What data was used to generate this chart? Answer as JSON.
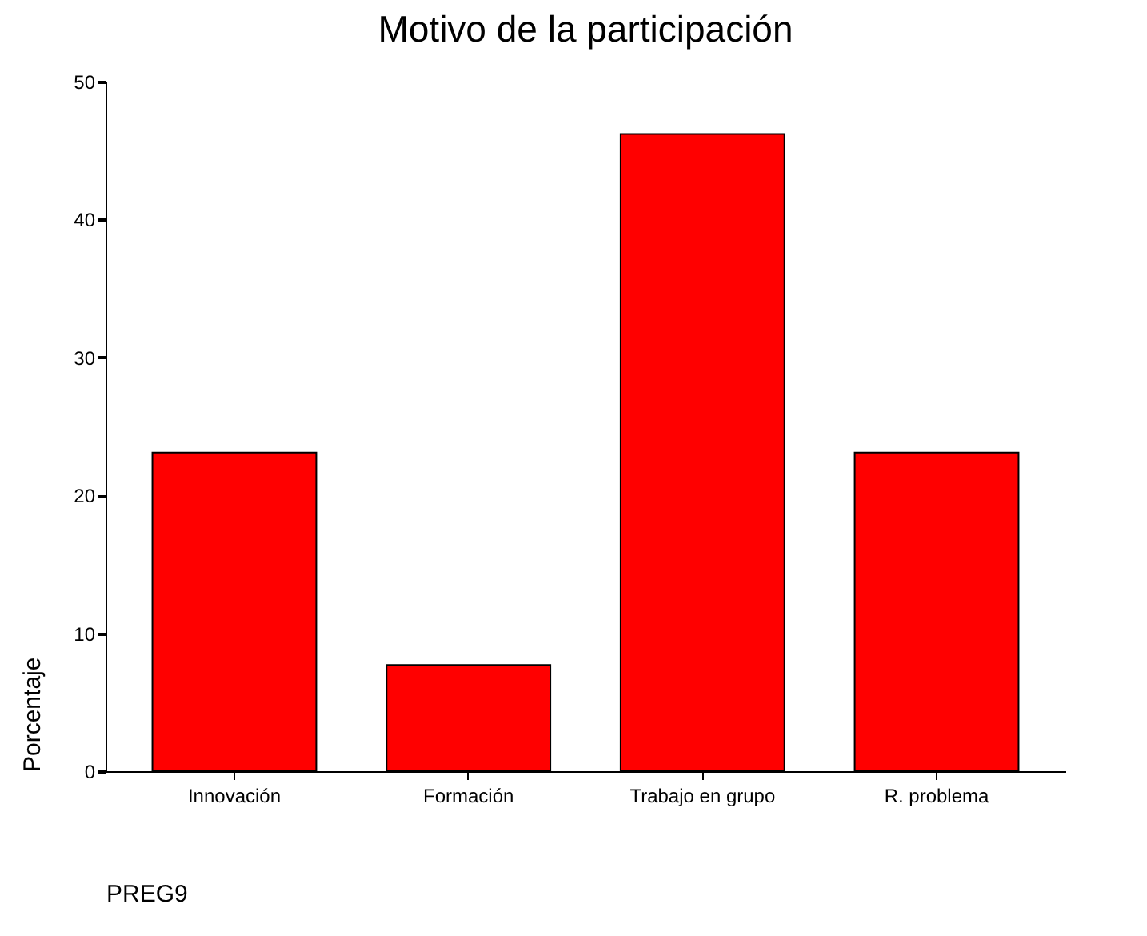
{
  "chart_data": {
    "type": "bar",
    "title": "Motivo de la participación",
    "xlabel": "PREG9",
    "ylabel": "Porcentaje",
    "categories": [
      "Innovación",
      "Formación",
      "Trabajo en grupo",
      "R. problema"
    ],
    "values": [
      23.1,
      7.7,
      46.2,
      23.1
    ],
    "color": "#ff0000",
    "ylim": [
      0,
      50
    ],
    "yticks": [
      0,
      10,
      20,
      30,
      40,
      50
    ],
    "grid": false
  }
}
